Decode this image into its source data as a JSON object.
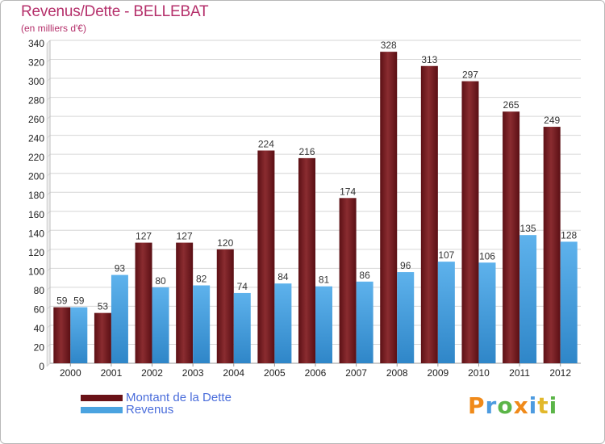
{
  "chart_data": {
    "type": "bar",
    "title": "Revenus/Dette - BELLEBAT",
    "subtitle": "(en milliers d'€)",
    "categories": [
      "2000",
      "2001",
      "2002",
      "2003",
      "2004",
      "2005",
      "2006",
      "2007",
      "2008",
      "2009",
      "2010",
      "2011",
      "2012"
    ],
    "series": [
      {
        "name": "Montant de la Dette",
        "color": "#7a1c22",
        "values": [
          59,
          53,
          127,
          127,
          120,
          224,
          216,
          174,
          328,
          313,
          297,
          265,
          249
        ]
      },
      {
        "name": "Revenus",
        "color": "#4aa3e0",
        "values": [
          59,
          93,
          80,
          82,
          74,
          84,
          81,
          86,
          96,
          107,
          106,
          135,
          128
        ]
      }
    ],
    "ylim": [
      0,
      340
    ],
    "yticks": [
      0,
      20,
      40,
      60,
      80,
      100,
      120,
      140,
      160,
      180,
      200,
      220,
      240,
      260,
      280,
      300,
      320,
      340
    ],
    "grid": true,
    "legend_position": "bottom-left"
  },
  "brand": {
    "letters": [
      "P",
      "r",
      "o",
      "x",
      "i",
      "t",
      "i"
    ]
  }
}
